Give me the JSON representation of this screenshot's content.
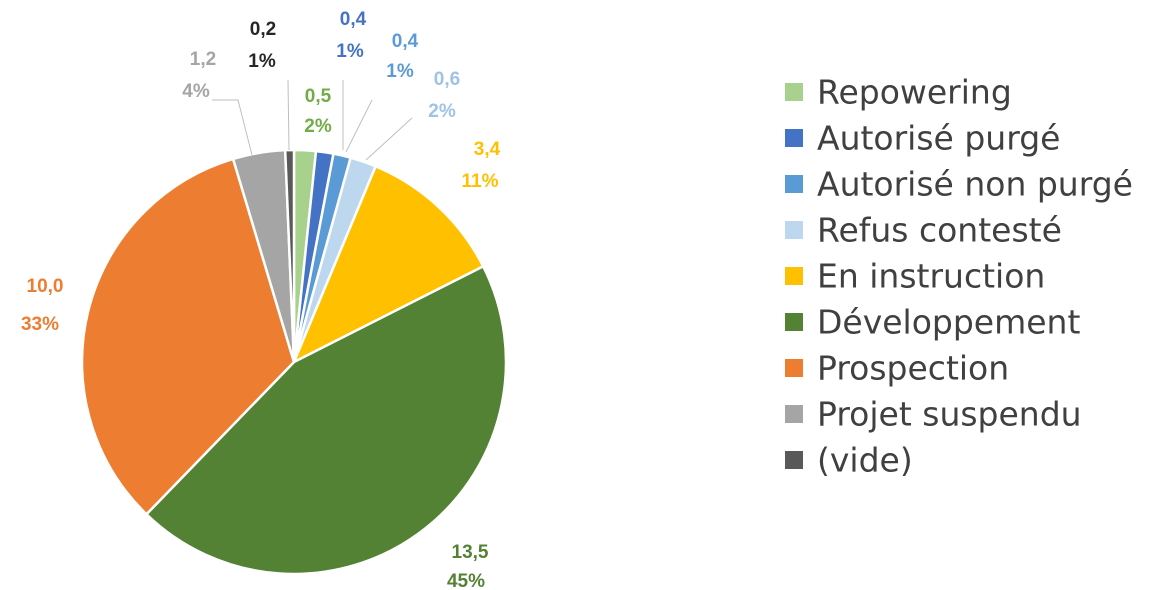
{
  "chart_data": {
    "type": "pie",
    "categories": [
      "Repowering",
      "Autorisé purgé",
      "Autorisé non purgé",
      "Refus contesté",
      "En instruction",
      "Développement",
      "Prospection",
      "Projet suspendu",
      "(vide)"
    ],
    "values": [
      0.5,
      0.4,
      0.4,
      0.6,
      3.4,
      13.5,
      10.0,
      1.2,
      0.2
    ],
    "value_labels": [
      "0,5",
      "0,4",
      "0,4",
      "0,6",
      "3,4",
      "13,5",
      "10,0",
      "1,2",
      "0,2"
    ],
    "percents": [
      2,
      1,
      1,
      2,
      11,
      45,
      33,
      4,
      1
    ],
    "percent_labels": [
      "2%",
      "1%",
      "1%",
      "2%",
      "11%",
      "45%",
      "33%",
      "4%",
      "1%"
    ],
    "colors": [
      "#a9d18e",
      "#4472c4",
      "#5b9bd5",
      "#bdd7ee",
      "#ffc000",
      "#548235",
      "#ed7d31",
      "#a5a5a5",
      "#595959"
    ],
    "legend": "right"
  }
}
